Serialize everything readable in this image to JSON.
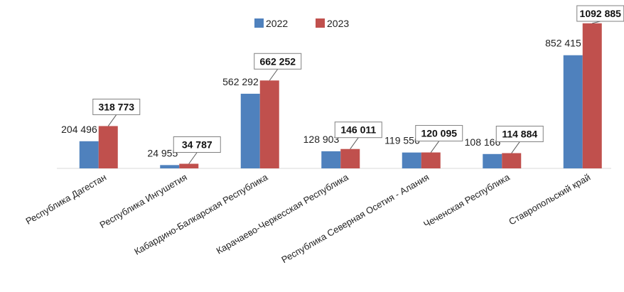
{
  "chart_data": {
    "type": "bar",
    "title": "",
    "xlabel": "",
    "ylabel": "",
    "categories": [
      "Республика Дагестан",
      "Республика Ингушетия",
      "Кабардино-Балкарская Республика",
      "Карачаево-Черкесская Республика",
      "Республика Северная Осетия - Алания",
      "Чеченская Республика",
      "Ставропольский край"
    ],
    "series": [
      {
        "name": "2022",
        "color": "#4f81bd",
        "values": [
          204496,
          24955,
          562292,
          128903,
          119556,
          108166,
          852415
        ],
        "labels": [
          "204 496",
          "24 955",
          "562 292",
          "128 903",
          "119 556",
          "108 166",
          "852 415"
        ]
      },
      {
        "name": "2023",
        "color": "#c0504d",
        "values": [
          318773,
          34787,
          662252,
          146011,
          120095,
          114884,
          1092885
        ],
        "labels": [
          "318 773",
          "34 787",
          "662 252",
          "146 011",
          "120 095",
          "114 884",
          "1092 885"
        ]
      }
    ],
    "ylim": [
      0,
      1140000
    ],
    "grid": false,
    "legend": "top-center"
  }
}
